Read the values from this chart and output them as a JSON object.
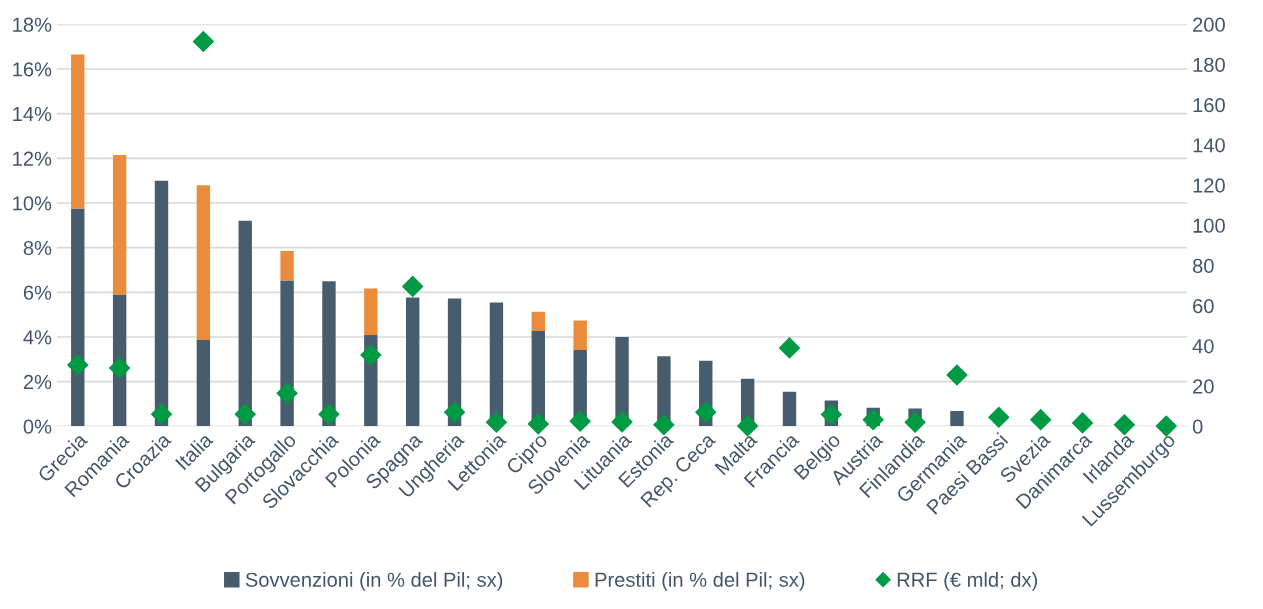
{
  "chart_data": {
    "type": "bar",
    "stacked": true,
    "categories": [
      "Grecia",
      "Romania",
      "Croazia",
      "Italia",
      "Bulgaria",
      "Portogallo",
      "Slovacchia",
      "Polonia",
      "Spagna",
      "Ungheria",
      "Lettonia",
      "Cipro",
      "Slovenia",
      "Lituania",
      "Estonia",
      "Rep. Ceca",
      "Malta",
      "Francia",
      "Belgio",
      "Austria",
      "Finlandia",
      "Germania",
      "Paesi Bassi",
      "Svezia",
      "Danimarca",
      "Irlanda",
      "Lussemburgo"
    ],
    "series": [
      {
        "name": "Sovvenzioni (in % del Pil; sx)",
        "color": "#475d6d",
        "values": [
          9.75,
          5.9,
          11.0,
          3.86,
          9.2,
          6.53,
          6.5,
          4.09,
          5.77,
          5.72,
          5.54,
          4.27,
          3.42,
          4.0,
          3.14,
          2.93,
          2.13,
          1.55,
          1.15,
          0.83,
          0.8,
          0.68,
          null,
          null,
          null,
          null,
          null
        ]
      },
      {
        "name": "Prestiti (in % del Pil; sx)",
        "color": "#ea8c3c",
        "values": [
          6.9,
          6.25,
          null,
          6.94,
          null,
          1.32,
          null,
          2.08,
          null,
          null,
          null,
          0.86,
          1.32,
          null,
          null,
          null,
          null,
          null,
          null,
          null,
          null,
          null,
          null,
          null,
          null,
          null,
          null
        ]
      },
      {
        "name": "RRF (€ mld; dx)",
        "type": "scatter",
        "axis": "y2",
        "marker": "diamond",
        "color": "#009a44",
        "values": [
          30.5,
          29,
          6,
          191.5,
          6,
          16.4,
          6,
          35.5,
          69.6,
          7,
          2,
          1.2,
          2.5,
          2.2,
          0.8,
          7,
          0.2,
          39,
          5.9,
          3.3,
          2,
          25.5,
          4.5,
          3.3,
          1.7,
          0.8,
          0.1
        ]
      }
    ],
    "ylim": [
      0,
      18
    ],
    "yticks": [
      {
        "value": 0,
        "label": "0%"
      },
      {
        "value": 2,
        "label": "2%"
      },
      {
        "value": 4,
        "label": "4%"
      },
      {
        "value": 6,
        "label": "6%"
      },
      {
        "value": 8,
        "label": "8%"
      },
      {
        "value": 10,
        "label": "10%"
      },
      {
        "value": 12,
        "label": "12%"
      },
      {
        "value": 14,
        "label": "14%"
      },
      {
        "value": 16,
        "label": "16%"
      },
      {
        "value": 18,
        "label": "18%"
      }
    ],
    "y2lim": [
      0,
      200
    ],
    "y2ticks": [
      0,
      20,
      40,
      60,
      80,
      100,
      120,
      140,
      160,
      180,
      200
    ],
    "grid": "y",
    "legend": "bottom"
  }
}
